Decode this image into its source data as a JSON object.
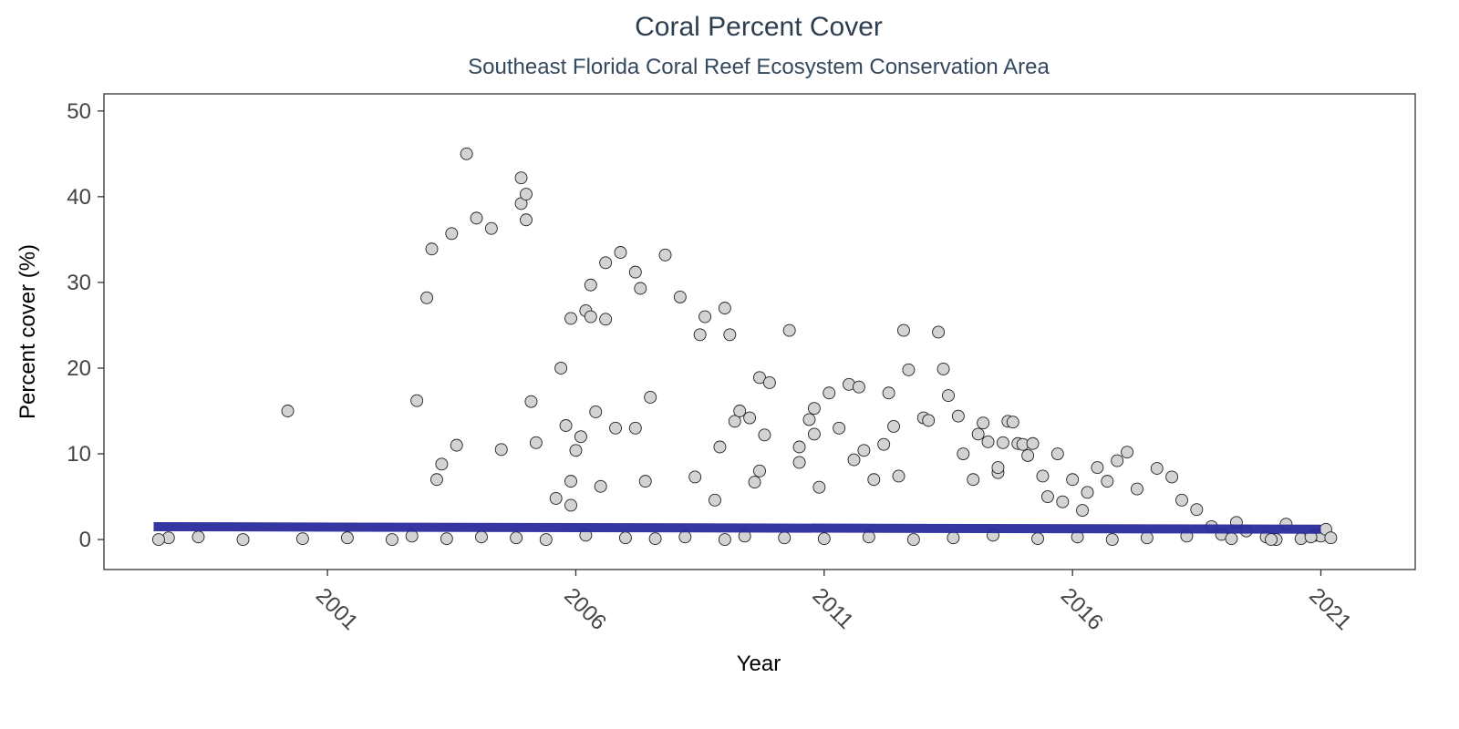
{
  "chart_data": {
    "type": "scatter",
    "title": "Coral Percent Cover",
    "subtitle": "Southeast Florida Coral Reef Ecosystem Conservation Area",
    "xlabel": "Year",
    "ylabel": "Percent cover (%)",
    "xlim": [
      1996.5,
      2022.9
    ],
    "ylim": [
      -3.5,
      52
    ],
    "x_ticks": [
      2001,
      2006,
      2011,
      2016,
      2021
    ],
    "y_ticks": [
      0,
      10,
      20,
      30,
      40,
      50
    ],
    "grid": false,
    "legend": "none",
    "point_fill": "#d3d3d3",
    "point_stroke": "#222222",
    "trend_color": "#2b2b9e",
    "trend_line": {
      "x": [
        1997.5,
        2021.0
      ],
      "y": [
        1.5,
        1.2
      ]
    },
    "points": {
      "x": [
        1997.8,
        2000.2,
        2002.8,
        2003.0,
        2003.1,
        2003.2,
        2003.3,
        2003.5,
        2003.6,
        2003.8,
        2004.0,
        2004.3,
        2004.5,
        2004.9,
        2004.9,
        2005.0,
        2005.0,
        2005.1,
        2005.2,
        2005.6,
        2005.7,
        2005.8,
        2005.9,
        2005.9,
        2005.9,
        2006.0,
        2006.1,
        2006.2,
        2006.3,
        2006.3,
        2006.4,
        2006.5,
        2006.6,
        2006.6,
        2006.8,
        2006.9,
        2007.2,
        2007.2,
        2007.3,
        2007.4,
        2007.5,
        2007.8,
        2008.1,
        2008.4,
        2008.5,
        2008.6,
        2008.8,
        2008.9,
        2009.0,
        2009.1,
        2009.2,
        2009.3,
        2009.5,
        2009.6,
        2009.7,
        2009.7,
        2009.8,
        2009.9,
        2010.3,
        2010.5,
        2010.5,
        2010.7,
        2010.8,
        2010.8,
        2010.9,
        2011.1,
        2011.3,
        2011.5,
        2011.6,
        2011.7,
        2011.8,
        2012.0,
        2012.2,
        2012.3,
        2012.4,
        2012.5,
        2012.6,
        2012.7,
        2013.0,
        2013.1,
        2013.3,
        2013.4,
        2013.5,
        2013.7,
        2013.8,
        2014.0,
        2014.1,
        2014.2,
        2014.3,
        2014.5,
        2014.5,
        2014.6,
        2014.7,
        2014.8,
        2014.9,
        2015.0,
        2015.1,
        2015.2,
        2015.4,
        2015.5,
        2015.7,
        2015.8,
        2016.0,
        2016.2,
        2016.3,
        2016.5,
        2016.7,
        2016.9,
        2017.1,
        2017.3,
        2017.7,
        2018.0,
        2018.2,
        2018.5,
        2018.8,
        2019.0,
        2019.3,
        2019.5,
        2019.9,
        2020.1,
        2020.3,
        2020.6,
        2020.9,
        2021.0,
        2021.1,
        1997.6,
        1998.4,
        1999.3,
        2000.5,
        2001.4,
        2002.3,
        2002.7,
        2003.4,
        2004.1,
        2004.8,
        2005.4,
        2006.2,
        2007.0,
        2007.6,
        2008.2,
        2009.0,
        2009.4,
        2010.2,
        2011.0,
        2011.9,
        2012.8,
        2013.6,
        2014.4,
        2015.3,
        2016.1,
        2016.8,
        2017.5,
        2018.3,
        2019.2,
        2020.0,
        2020.8,
        2021.2
      ],
      "y": [
        0.2,
        15.0,
        16.2,
        28.2,
        33.9,
        7.0,
        8.8,
        35.7,
        11.0,
        45.0,
        37.5,
        36.3,
        10.5,
        39.2,
        42.2,
        37.3,
        40.3,
        16.1,
        11.3,
        4.8,
        20.0,
        13.3,
        25.8,
        6.8,
        4.0,
        10.4,
        12.0,
        26.7,
        26.0,
        29.7,
        14.9,
        6.2,
        25.7,
        32.3,
        13.0,
        33.5,
        13.0,
        31.2,
        29.3,
        6.8,
        16.6,
        33.2,
        28.3,
        7.3,
        23.9,
        26.0,
        4.6,
        10.8,
        27.0,
        23.9,
        13.8,
        15.0,
        14.2,
        6.7,
        18.9,
        8.0,
        12.2,
        18.3,
        24.4,
        9.0,
        10.8,
        14.0,
        15.3,
        12.3,
        6.1,
        17.1,
        13.0,
        18.1,
        9.3,
        17.8,
        10.4,
        7.0,
        11.1,
        17.1,
        13.2,
        7.4,
        24.4,
        19.8,
        14.2,
        13.9,
        24.2,
        19.9,
        16.8,
        14.4,
        10.0,
        7.0,
        12.3,
        13.6,
        11.4,
        7.8,
        8.4,
        11.3,
        13.8,
        13.7,
        11.2,
        11.1,
        9.8,
        11.2,
        7.4,
        5.0,
        10.0,
        4.4,
        7.0,
        3.4,
        5.5,
        8.4,
        6.8,
        9.2,
        10.2,
        5.9,
        8.3,
        7.3,
        4.6,
        3.5,
        1.5,
        0.6,
        2.0,
        1.0,
        0.3,
        0.0,
        1.8,
        0.1,
        0.5,
        0.4,
        1.2,
        0.0,
        0.3,
        0.0,
        0.1,
        0.2,
        0.0,
        0.4,
        0.1,
        0.3,
        0.2,
        0.0,
        0.5,
        0.2,
        0.1,
        0.3,
        0.0,
        0.4,
        0.2,
        0.1,
        0.3,
        0.0,
        0.2,
        0.5,
        0.1,
        0.3,
        0.0,
        0.2,
        0.4,
        0.1,
        0.0,
        0.3,
        0.2
      ]
    }
  }
}
